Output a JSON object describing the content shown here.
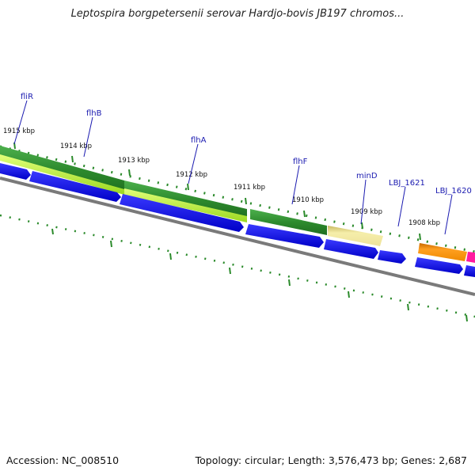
{
  "title": "Leptospira borgpetersenii serovar Hardjo-bovis JB197 chromos...",
  "footer": {
    "accession": "Accession: NC_008510",
    "summary": "Topology: circular; Length: 3,576,473 bp; Genes: 2,687"
  },
  "scale_labels": [
    "1915 kbp",
    "1914 kbp",
    "1913 kbp",
    "1912 kbp",
    "1911 kbp",
    "1910 kbp",
    "1909 kbp",
    "1908 kbp"
  ],
  "gene_labels": [
    "fliR",
    "flhB",
    "flhA",
    "flhF",
    "minD",
    "LBJ_1621",
    "LBJ_1620"
  ],
  "colors": {
    "cds_blue": "#1010e0",
    "flagellar_dark_green": "#2e8b2e",
    "flagellar_light_green": "#b9f040",
    "mind_yellow": "#efe69a",
    "orange": "#f28c00",
    "magenta": "#ff1aa0",
    "backbone_gray": "#808080",
    "tick_green": "#2a8a2a",
    "label_blue": "#1a1ab0"
  }
}
